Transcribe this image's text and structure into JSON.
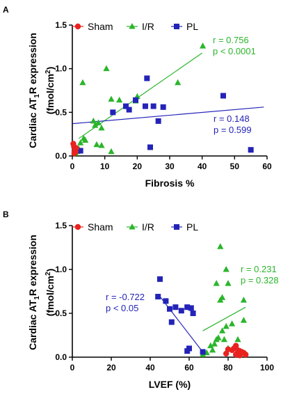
{
  "chart_data": [
    {
      "panel": "A",
      "type": "scatter",
      "xlabel": "Fibrosis %",
      "ylabel": "Cardiac AT1R expression",
      "ylabel_unit": "(fmol/cm2)",
      "xlim": [
        0,
        60
      ],
      "ylim": [
        0,
        1.5
      ],
      "xticks": [
        0,
        10,
        20,
        30,
        40,
        50,
        60
      ],
      "yticks": [
        "0.0",
        "0.5",
        "1.0",
        "1.5"
      ],
      "legend": [
        "Sham",
        "I/R",
        "PL"
      ],
      "series": [
        {
          "name": "Sham",
          "marker": "circle",
          "color": "#e8231f",
          "points": [
            [
              0.3,
              0.14
            ],
            [
              0.5,
              0.11
            ],
            [
              0.8,
              0.07
            ],
            [
              1.0,
              0.05
            ],
            [
              0.6,
              0.03
            ],
            [
              1.2,
              0.09
            ]
          ]
        },
        {
          "name": "I/R",
          "marker": "triangle",
          "color": "#2bb52b",
          "points": [
            [
              40.2,
              1.26
            ],
            [
              10.5,
              1.0
            ],
            [
              3.2,
              0.84
            ],
            [
              32.5,
              0.84
            ],
            [
              20.0,
              0.68
            ],
            [
              12.0,
              0.65
            ],
            [
              14.5,
              0.64
            ],
            [
              19.5,
              0.63
            ],
            [
              6.5,
              0.4
            ],
            [
              8.0,
              0.38
            ],
            [
              7.0,
              0.35
            ],
            [
              9.0,
              0.32
            ],
            [
              3.5,
              0.2
            ],
            [
              4.0,
              0.18
            ],
            [
              2.5,
              0.15
            ],
            [
              7.5,
              0.13
            ],
            [
              9.0,
              0.12
            ],
            [
              12.0,
              0.05
            ],
            [
              1.5,
              0.05
            ],
            [
              2.0,
              0.08
            ],
            [
              1.0,
              0.03
            ]
          ]
        },
        {
          "name": "PL",
          "marker": "square",
          "color": "#2323b8",
          "points": [
            [
              23.0,
              0.89
            ],
            [
              46.5,
              0.69
            ],
            [
              19.5,
              0.64
            ],
            [
              16.5,
              0.57
            ],
            [
              22.5,
              0.57
            ],
            [
              25.0,
              0.57
            ],
            [
              28.0,
              0.56
            ],
            [
              17.5,
              0.53
            ],
            [
              12.5,
              0.5
            ],
            [
              26.5,
              0.4
            ],
            [
              24.0,
              0.1
            ],
            [
              55.0,
              0.07
            ],
            [
              2.5,
              0.06
            ]
          ]
        }
      ],
      "fits": [
        {
          "series": "I/R",
          "x": [
            2,
            40
          ],
          "y": [
            0.2,
            1.18
          ]
        },
        {
          "series": "PL",
          "x": [
            0,
            59
          ],
          "y": [
            0.37,
            0.56
          ]
        }
      ],
      "annotations": [
        {
          "text": "r = 0.756",
          "color": "#2bb52b"
        },
        {
          "text": "p < 0.0001",
          "color": "#2bb52b"
        },
        {
          "text": "r = 0.148",
          "color": "#2323b8"
        },
        {
          "text": "p = 0.599",
          "color": "#2323b8"
        }
      ]
    },
    {
      "panel": "B",
      "type": "scatter",
      "xlabel": "LVEF (%)",
      "ylabel": "Cardiac AT1R expression",
      "ylabel_unit": "(fmol/cm2)",
      "xlim": [
        0,
        100
      ],
      "ylim": [
        0,
        1.5
      ],
      "xticks": [
        0,
        20,
        40,
        60,
        80,
        100
      ],
      "yticks": [
        "0.0",
        "0.5",
        "1.0",
        "1.5"
      ],
      "legend": [
        "Sham",
        "I/R",
        "PL"
      ],
      "series": [
        {
          "name": "Sham",
          "marker": "circle",
          "color": "#e8231f",
          "points": [
            [
              84,
              0.13
            ],
            [
              83,
              0.1
            ],
            [
              85,
              0.08
            ],
            [
              86,
              0.07
            ],
            [
              87,
              0.06
            ],
            [
              82,
              0.08
            ],
            [
              88,
              0.05
            ],
            [
              89,
              0.03
            ],
            [
              86,
              0.02
            ],
            [
              80,
              0.09
            ],
            [
              79,
              0.04
            ],
            [
              84,
              0.03
            ]
          ]
        },
        {
          "name": "I/R",
          "marker": "triangle",
          "color": "#2bb52b",
          "points": [
            [
              76,
              1.26
            ],
            [
              79,
              1.0
            ],
            [
              74,
              0.84
            ],
            [
              80,
              0.84
            ],
            [
              77,
              0.68
            ],
            [
              76,
              0.65
            ],
            [
              88,
              0.65
            ],
            [
              88,
              0.42
            ],
            [
              82,
              0.38
            ],
            [
              79,
              0.35
            ],
            [
              77,
              0.3
            ],
            [
              75,
              0.22
            ],
            [
              74,
              0.2
            ],
            [
              73,
              0.15
            ],
            [
              71,
              0.13
            ],
            [
              78,
              0.2
            ],
            [
              80,
              0.1
            ],
            [
              69,
              0.05
            ],
            [
              67,
              0.03
            ],
            [
              85,
              0.2
            ],
            [
              72,
              0.08
            ]
          ]
        },
        {
          "name": "PL",
          "marker": "square",
          "color": "#2323b8",
          "points": [
            [
              45,
              0.89
            ],
            [
              44,
              0.69
            ],
            [
              48,
              0.64
            ],
            [
              53,
              0.57
            ],
            [
              59,
              0.57
            ],
            [
              61,
              0.56
            ],
            [
              50,
              0.55
            ],
            [
              56,
              0.53
            ],
            [
              62,
              0.5
            ],
            [
              51,
              0.4
            ],
            [
              60,
              0.1
            ],
            [
              59,
              0.07
            ],
            [
              67,
              0.06
            ]
          ]
        }
      ],
      "fits": [
        {
          "series": "PL",
          "x": [
            44,
            68
          ],
          "y": [
            0.72,
            0.03
          ]
        },
        {
          "series": "I/R",
          "x": [
            67,
            89
          ],
          "y": [
            0.3,
            0.57
          ]
        }
      ],
      "annotations": [
        {
          "text": "r = -0.722",
          "color": "#2323b8"
        },
        {
          "text": "p < 0.05",
          "color": "#2323b8"
        },
        {
          "text": "r = 0.231",
          "color": "#2bb52b"
        },
        {
          "text": "p = 0.328",
          "color": "#2bb52b"
        }
      ]
    }
  ]
}
